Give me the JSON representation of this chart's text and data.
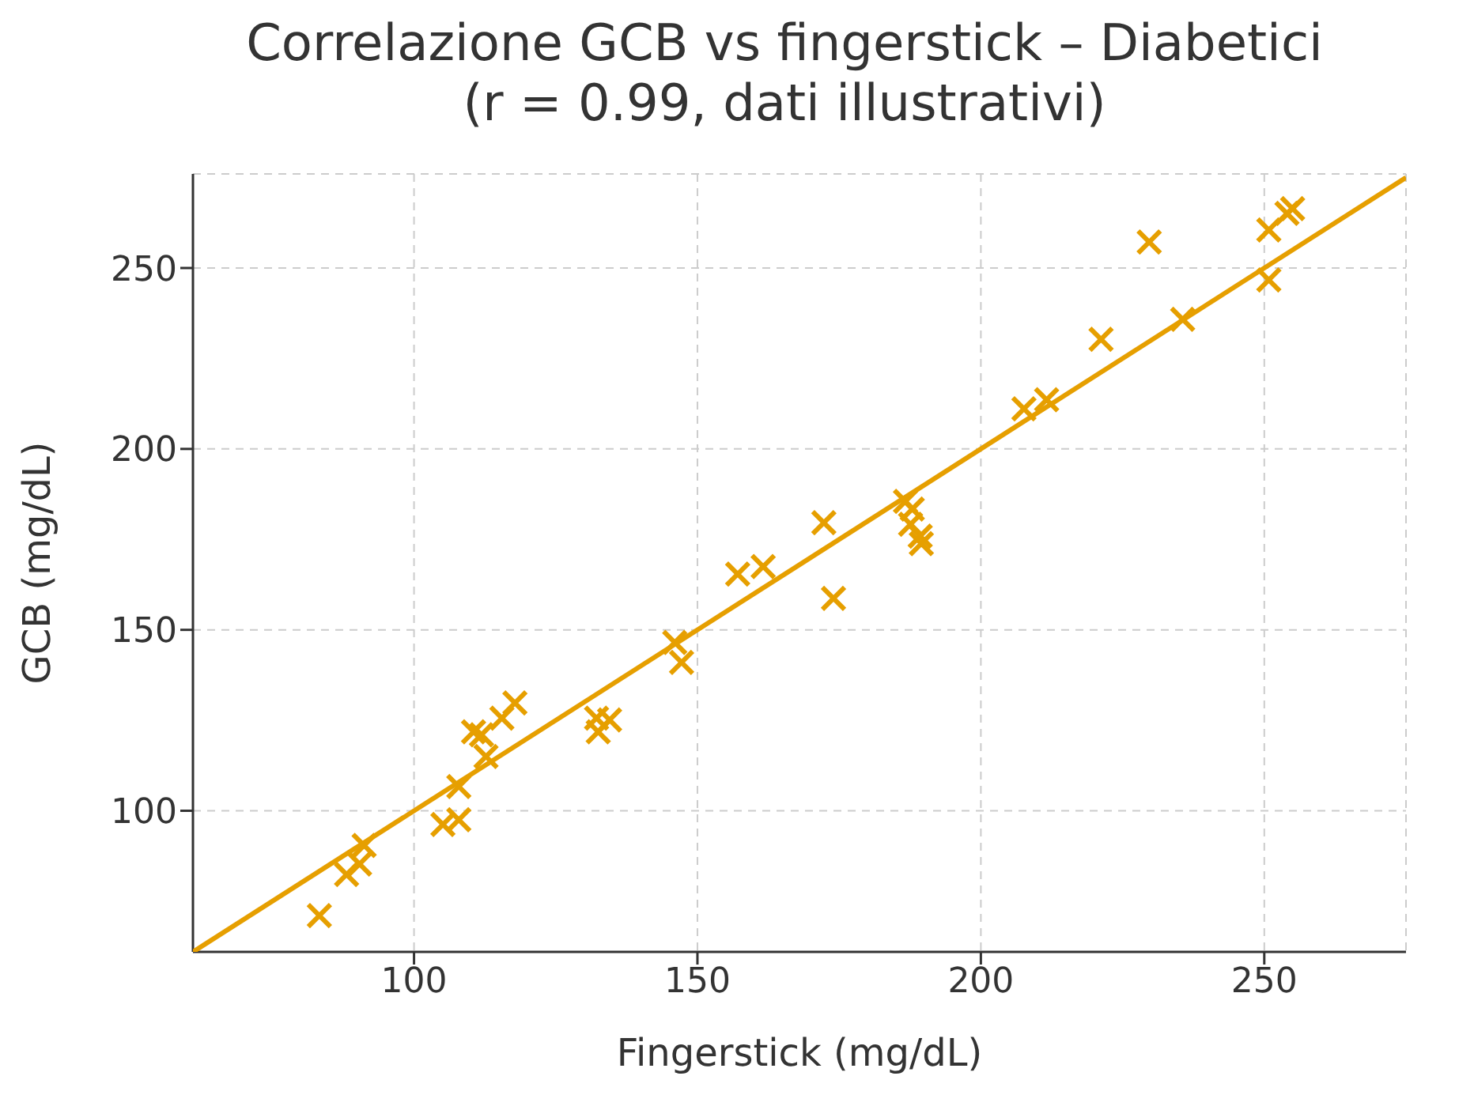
{
  "chart_data": {
    "type": "scatter",
    "title": "Correlazione GCB vs fingerstick – Diabetici\n(r = 0.99, dati illustrativi)",
    "xlabel": "Fingerstick (mg/dL)",
    "ylabel": "GCB (mg/dL)",
    "xlim": [
      61,
      275
    ],
    "ylim": [
      61,
      276
    ],
    "xticks": [
      100,
      150,
      200,
      250
    ],
    "yticks": [
      100,
      150,
      200,
      250
    ],
    "grid": true,
    "series": [
      {
        "marker": "cross",
        "color": "#e69f00",
        "x": [
          83.3,
          88.1,
          90.4,
          91.2,
          105.1,
          107.9,
          107.9,
          110.5,
          111.9,
          112.7,
          115.5,
          117.8,
          132.2,
          132.5,
          134.5,
          146,
          147.2,
          157.1,
          161.6,
          172.3,
          174,
          186.7,
          187.9,
          187.6,
          189.3,
          189.5,
          207.6,
          211.6,
          221.2,
          229.7,
          235.6,
          250.8,
          250.8,
          254,
          255
        ],
        "values": [
          71,
          82.4,
          85.3,
          90.4,
          96.2,
          97.5,
          106.7,
          121.8,
          121,
          115,
          125.6,
          129.8,
          125.6,
          121.8,
          125.1,
          146.5,
          141,
          165.4,
          167.5,
          179.6,
          158.7,
          185.5,
          183.4,
          179.2,
          175.9,
          173.8,
          211.1,
          213.6,
          230.3,
          257.2,
          235.8,
          260.5,
          246.7,
          265.1,
          266.4
        ]
      },
      {
        "type": "line",
        "marker": "none",
        "line_style": "solid",
        "color": "#e69f00",
        "x": [
          61,
          275
        ],
        "values": [
          61,
          275
        ]
      }
    ]
  }
}
